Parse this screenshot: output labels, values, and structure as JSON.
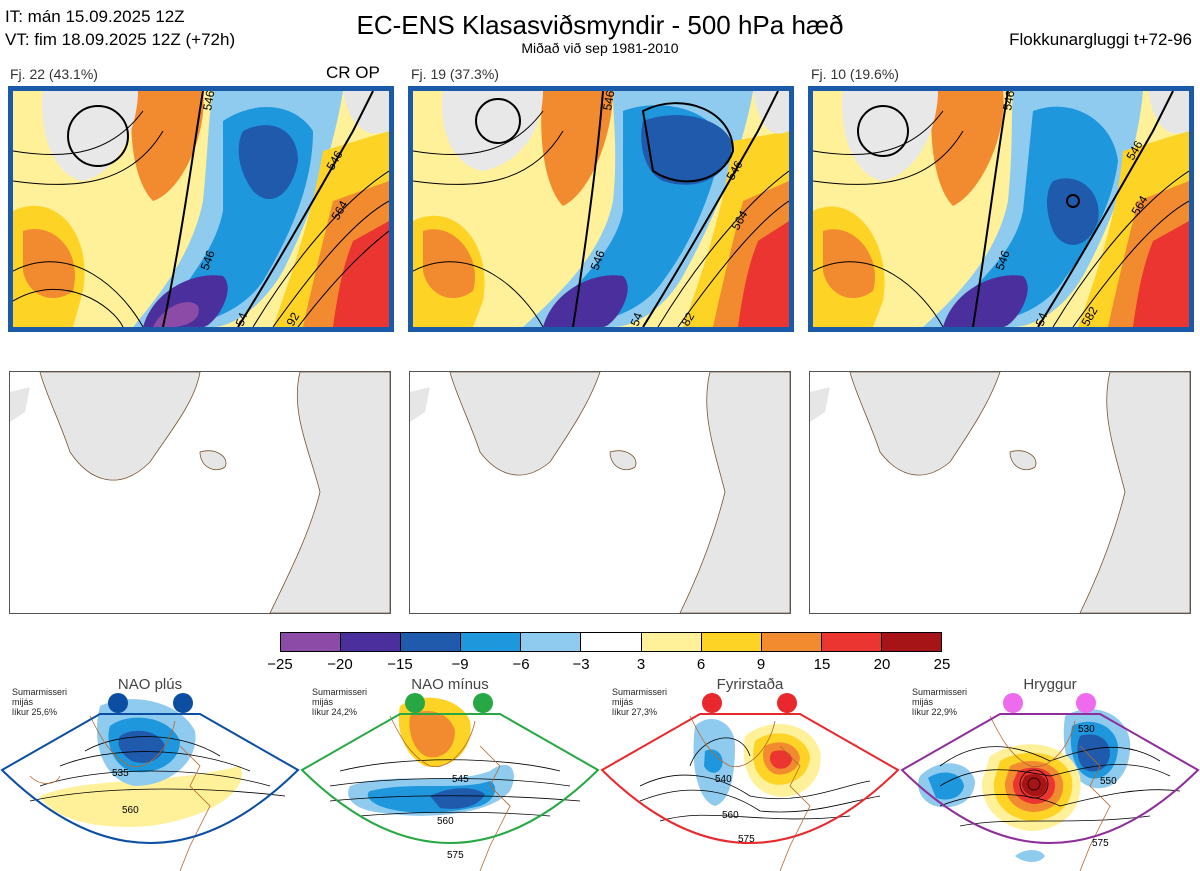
{
  "header": {
    "it_line": "IT: mán 15.09.2025 12Z",
    "vt_line": "VT: fim 18.09.2025 12Z  (+72h)",
    "title": "EC-ENS Klasasviðsmyndir - 500 hPa hæð",
    "subtitle": "Miðað við sep 1981-2010",
    "window": "Flokkunargluggi t+72-96"
  },
  "clusters": [
    {
      "label": "Fj. 22 (43.1%)",
      "tag": "CR OP",
      "contours": [
        "546",
        "546",
        "564",
        "546",
        "54",
        "92"
      ]
    },
    {
      "label": "Fj. 19 (37.3%)",
      "tag": "",
      "contours": [
        "546",
        "546",
        "564",
        "546",
        "54",
        "82"
      ]
    },
    {
      "label": "Fj. 10 (19.6%)",
      "tag": "",
      "contours": [
        "546",
        "546",
        "564",
        "546",
        "54",
        "582"
      ]
    }
  ],
  "colorbar": {
    "ticks": [
      "−25",
      "−20",
      "−15",
      "−9",
      "−6",
      "−3",
      "3",
      "6",
      "9",
      "15",
      "20",
      "25"
    ],
    "colors": [
      "#8c4ba6",
      "#4b2f9c",
      "#1f5aad",
      "#1f97dd",
      "#8fcbef",
      "#ffffff",
      "#fff09a",
      "#fdd325",
      "#f28b30",
      "#ea3530",
      "#a61418"
    ]
  },
  "regimes": [
    {
      "name": "NAO plús",
      "season": "Sumarmisseri",
      "mean": "mijás",
      "prob": "líkur 25,6%",
      "color": "#0b4ea2",
      "contours": [
        "535",
        "560"
      ]
    },
    {
      "name": "NAO mínus",
      "season": "Sumarmisseri",
      "mean": "mijás",
      "prob": "líkur 24,2%",
      "color": "#27a844",
      "contours": [
        "545",
        "560",
        "575"
      ]
    },
    {
      "name": "Fyrirstaða",
      "season": "Sumarmisseri",
      "mean": "mijás",
      "prob": "líkur 27,3%",
      "color": "#e8282d",
      "contours": [
        "540",
        "560",
        "575"
      ]
    },
    {
      "name": "Hryggur",
      "season": "Sumarmisseri",
      "mean": "mijás",
      "prob": "líkur 22,9%",
      "color": "#8e2e9a",
      "contours": [
        "530",
        "550",
        "575"
      ]
    }
  ],
  "map_colors": {
    "land": "#e6e6e6",
    "coast": "#7a5632",
    "regime_coast": "#b5672e"
  }
}
